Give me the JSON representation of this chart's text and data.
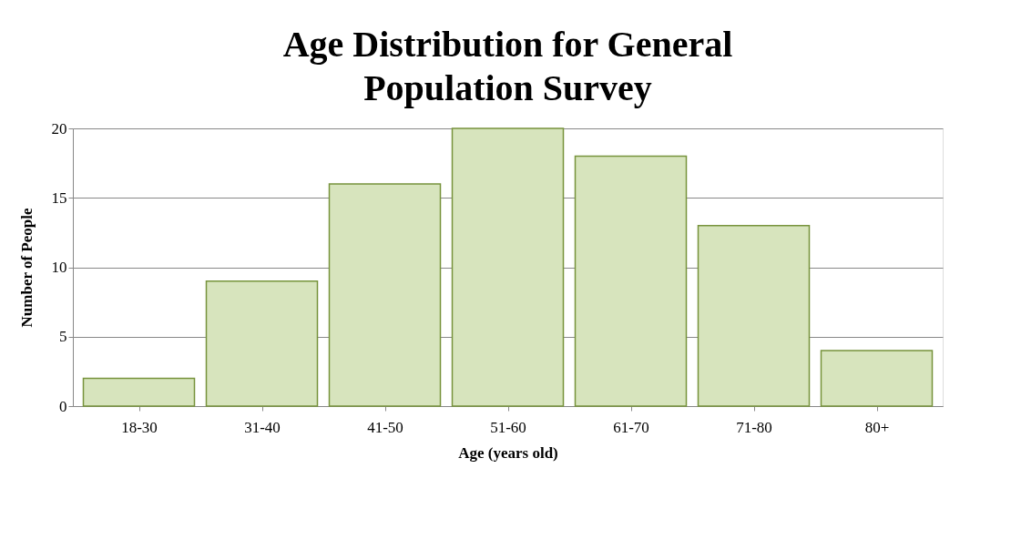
{
  "chart_data": {
    "type": "bar",
    "title": "Age Distribution for General Population Survey",
    "xlabel": "Age (years old)",
    "ylabel": "Number of People",
    "categories": [
      "18-30",
      "31-40",
      "41-50",
      "51-60",
      "61-70",
      "71-80",
      "80+"
    ],
    "values": [
      2,
      9,
      16,
      20,
      18,
      13,
      4
    ],
    "color": "#d7e4bd",
    "ylim": [
      0,
      20
    ],
    "yticks": [
      0,
      5,
      10,
      15,
      20
    ],
    "grid": "y"
  }
}
